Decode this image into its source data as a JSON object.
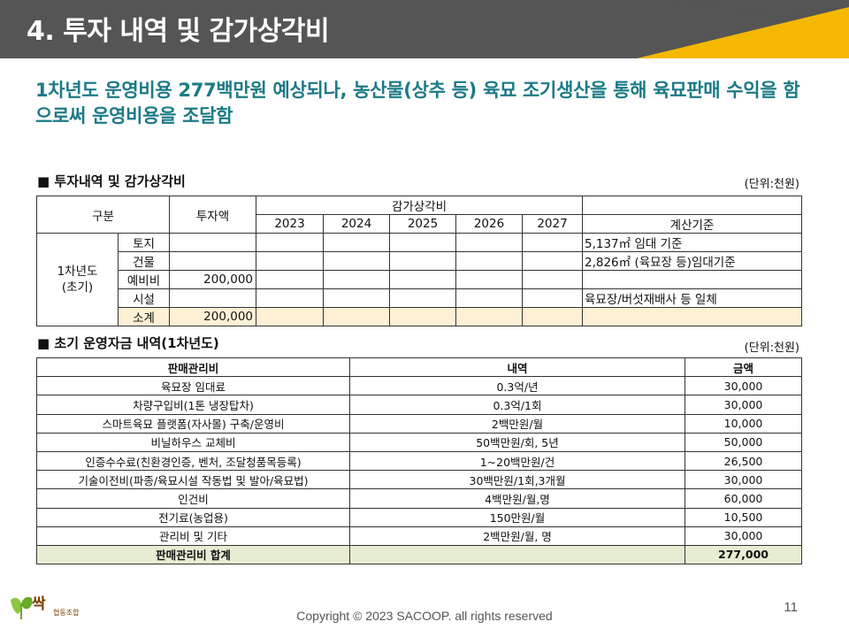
{
  "header": {
    "title": "4. 투자 내역 및 감가상각비"
  },
  "subtitle": "1차년도 운영비용 277백만원 예상되나, 농산물(상추 등) 육묘 조기생산을 통해 육묘판매 수익을 함으로써 운영비용을 조달함",
  "section1": {
    "title": "■ 투자내역 및 감가상각비",
    "unit": "(단위:천원)",
    "headers": {
      "category": "구분",
      "investment": "투자액",
      "depreciation": "감가상각비",
      "years": [
        "2023",
        "2024",
        "2025",
        "2026",
        "2027"
      ],
      "basis": "계산기준"
    },
    "group_label": "1차년도\n(초기)",
    "rows": [
      {
        "item": "토지",
        "investment": "",
        "basis": "5,137㎡ 임대 기준"
      },
      {
        "item": "건물",
        "investment": "",
        "basis": "2,826㎡ (육묘장 등)임대기준"
      },
      {
        "item": "예비비",
        "investment": "200,000",
        "basis": ""
      },
      {
        "item": "시설",
        "investment": "",
        "basis": "육묘장/버섯재배사 등 일체"
      },
      {
        "item": "소계",
        "investment": "200,000",
        "basis": ""
      }
    ]
  },
  "section2": {
    "title": "■ 초기 운영자금 내역(1차년도)",
    "unit": "(단위:천원)",
    "headers": [
      "판매관리비",
      "내역",
      "금액"
    ],
    "rows": [
      [
        "육묘장 임대료",
        "0.3억/년",
        "30,000"
      ],
      [
        "차량구입비(1톤 냉장탑차)",
        "0.3억/1회",
        "30,000"
      ],
      [
        "스마트육묘 플랫폼(자사몰) 구축/운영비",
        "2백만원/월",
        "10,000"
      ],
      [
        "비닐하우스 교체비",
        "50백만원/회, 5년",
        "50,000"
      ],
      [
        "인증수수료(친환경인증, 벤처, 조달청품목등록)",
        "1~20백만원/건",
        "26,500"
      ],
      [
        "기술이전비(파종/육묘시설 작동법 및 발아/육묘법)",
        "30백만원/1회,3개월",
        "30,000"
      ],
      [
        "인건비",
        "4백만원/월,명",
        "60,000"
      ],
      [
        "전기료(농업용)",
        "150만원/월",
        "10,500"
      ],
      [
        "관리비 및 기타",
        "2백만원/월, 명",
        "30,000"
      ]
    ],
    "total": {
      "label": "판매관리비 합계",
      "detail": "",
      "amount": "277,000"
    }
  },
  "footer": {
    "copyright": "Copyright © 2023 SACOOP. all rights reserved",
    "page": "11"
  },
  "logo": {
    "text": "싹",
    "sub": "협동조합"
  },
  "colors": {
    "header_bg": "#555555",
    "accent": "#f5b800",
    "subtitle": "#1b7a86",
    "highlight": "#fdf0d5",
    "total_row": "#e6edd3"
  }
}
